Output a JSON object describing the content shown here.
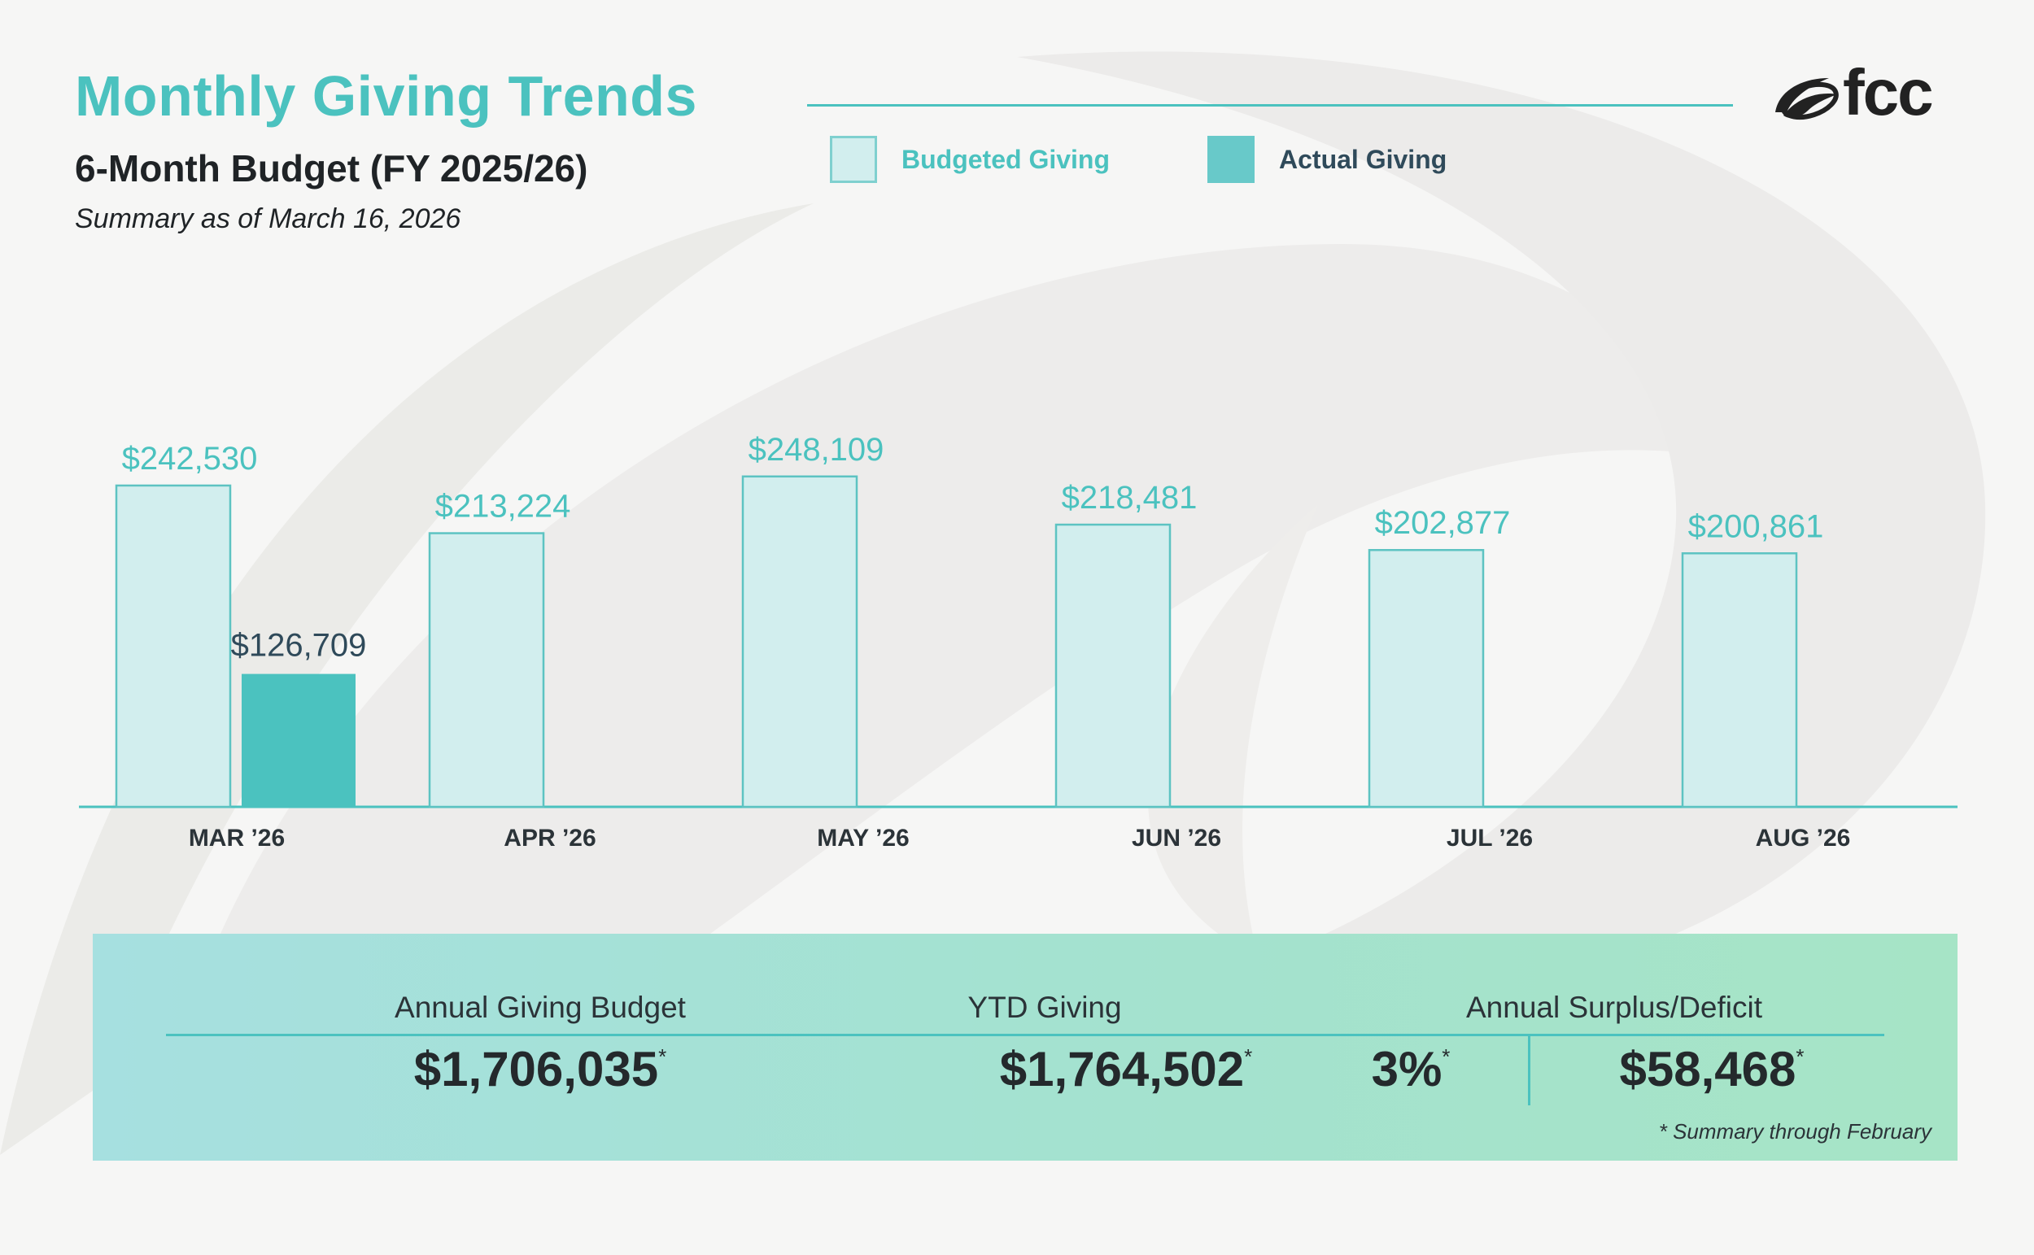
{
  "header": {
    "title": "Monthly Giving Trends",
    "subtitle": "6-Month Budget (FY 2025/26)",
    "as_of": "Summary as of March 16, 2026"
  },
  "logo": {
    "text": "fcc"
  },
  "legend": {
    "budgeted_label": "Budgeted Giving",
    "actual_label": "Actual Giving"
  },
  "colors": {
    "accent": "#4bc2bf",
    "budget_fill": "#d2eeee",
    "budget_stroke": "#5dc3c2",
    "actual_fill": "#4bc2bf",
    "actual_label": "#2f4a5a",
    "axis": "#4bc2bf"
  },
  "chart_data": {
    "type": "bar",
    "title": "Monthly Giving Trends",
    "categories": [
      "MAR ’26",
      "APR ’26",
      "MAY ’26",
      "JUN ’26",
      "JUL ’26",
      "AUG ’26"
    ],
    "series": [
      {
        "name": "Budgeted Giving",
        "values": [
          242530,
          213224,
          248109,
          218481,
          202877,
          200861
        ],
        "labels": [
          "$242,530",
          "$213,224",
          "$248,109",
          "$218,481",
          "$202,877",
          "$200,861"
        ]
      },
      {
        "name": "Actual Giving",
        "values": [
          126709,
          null,
          null,
          null,
          null,
          null
        ],
        "labels": [
          "$126,709",
          null,
          null,
          null,
          null,
          null
        ]
      }
    ],
    "ylim": [
      0,
      300000
    ],
    "grid": false,
    "legend": "top"
  },
  "summary": {
    "budget_label": "Annual Giving Budget",
    "budget_value": "$1,706,035",
    "ytd_label": "YTD Giving",
    "ytd_value": "$1,764,502",
    "surplus_label": "Annual Surplus/Deficit",
    "surplus_percent": "3%",
    "surplus_value": "$58,468",
    "asterisk": "*",
    "note": "*  Summary through February"
  }
}
